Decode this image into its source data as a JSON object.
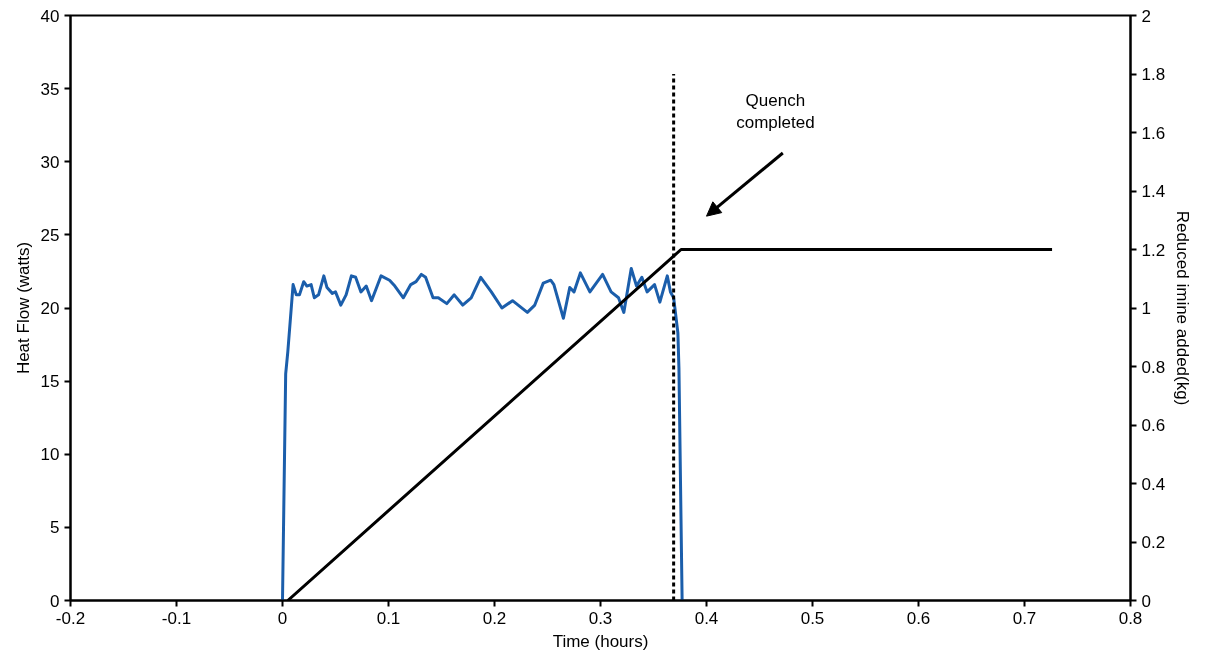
{
  "chart_data": {
    "type": "line",
    "xlabel": "Time (hours)",
    "ylabel": "Heat Flow (watts)",
    "y2label": "Reduced imine added(kg)",
    "xlim": [
      -0.2,
      0.8
    ],
    "xticks": [
      -0.2,
      -0.1,
      0,
      0.1,
      0.2,
      0.3,
      0.4,
      0.5,
      0.6,
      0.7,
      0.8
    ],
    "ylim": [
      0,
      40
    ],
    "yticks": [
      0,
      5,
      10,
      15,
      20,
      25,
      30,
      35,
      40
    ],
    "y2lim": [
      0,
      2
    ],
    "y2ticks": [
      0,
      0.2,
      0.4,
      0.6,
      0.8,
      1,
      1.2,
      1.4,
      1.6,
      1.8,
      2
    ],
    "grid": false,
    "marker": "none",
    "annotations": [
      "Quench\ncompleted"
    ],
    "series": [
      {
        "color": "#1b5eab",
        "line_style": "solid",
        "axis": "y",
        "x": [
          0,
          0.003,
          0.005,
          0.01,
          0.013,
          0.016,
          0.02,
          0.023,
          0.027,
          0.03,
          0.034,
          0.039,
          0.042,
          0.047,
          0.05,
          0.055,
          0.06,
          0.065,
          0.069,
          0.074,
          0.079,
          0.084,
          0.093,
          0.101,
          0.106,
          0.114,
          0.121,
          0.126,
          0.131,
          0.135,
          0.142,
          0.147,
          0.155,
          0.162,
          0.17,
          0.178,
          0.187,
          0.197,
          0.207,
          0.217,
          0.231,
          0.238,
          0.246,
          0.253,
          0.256,
          0.265,
          0.271,
          0.275,
          0.281,
          0.29,
          0.302,
          0.31,
          0.317,
          0.322,
          0.329,
          0.334,
          0.339,
          0.344,
          0.351,
          0.356,
          0.363,
          0.366,
          0.369,
          0.373,
          0.374,
          0.377
        ],
        "values": [
          0,
          15.5,
          17,
          21.6,
          20.9,
          20.9,
          21.8,
          21.5,
          21.6,
          20.7,
          20.9,
          22.2,
          21.4,
          21.0,
          21.1,
          20.2,
          20.9,
          22.2,
          22.1,
          21.1,
          21.5,
          20.5,
          22.2,
          21.9,
          21.5,
          20.7,
          21.6,
          21.8,
          22.3,
          22.1,
          20.7,
          20.7,
          20.3,
          20.9,
          20.2,
          20.7,
          22.1,
          21.1,
          20.0,
          20.5,
          19.7,
          20.2,
          21.7,
          21.9,
          21.6,
          19.3,
          21.4,
          21.1,
          22.4,
          21.1,
          22.3,
          21.1,
          20.7,
          19.7,
          22.7,
          21.5,
          22.1,
          21.1,
          21.6,
          20.4,
          22.2,
          21.1,
          20.7,
          18.3,
          15.9,
          0
        ]
      },
      {
        "color": "#000000",
        "line_style": "solid",
        "axis": "y2",
        "x": [
          0.005,
          0.376,
          0.726
        ],
        "values": [
          0,
          1.2,
          1.2
        ]
      },
      {
        "color": "#000000",
        "line_style": "dashed",
        "axis": "y",
        "x": [
          0.369,
          0.369
        ],
        "values": [
          0,
          36
        ]
      }
    ]
  }
}
